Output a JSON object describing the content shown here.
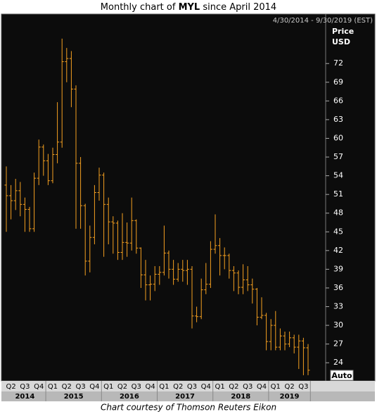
{
  "chart_data": {
    "type": "ohlc",
    "title": {
      "prefix": "Monthly chart of ",
      "ticker": "MYL",
      "suffix": " since April 2014"
    },
    "date_range": "4/30/2014 - 9/30/2019 (EST)",
    "axis_label": [
      "Price",
      "USD"
    ],
    "auto_label": "Auto",
    "caption": "Chart courtesy of Thomson Reuters Eikon",
    "color": "#f5a020",
    "quarters": [
      "Q2",
      "Q3",
      "Q4",
      "Q1",
      "Q2",
      "Q3",
      "Q4",
      "Q1",
      "Q2",
      "Q3",
      "Q4",
      "Q1",
      "Q2",
      "Q3",
      "Q4",
      "Q1",
      "Q2",
      "Q3",
      "Q4",
      "Q1",
      "Q2",
      "Q3"
    ],
    "years": [
      "2014",
      "2015",
      "2016",
      "2017",
      "2018",
      "2019"
    ],
    "ylim": [
      21.2,
      77.9
    ],
    "yticks": [
      24,
      27,
      30,
      33,
      36,
      39,
      42,
      45,
      48,
      51,
      54,
      57,
      60,
      63,
      66,
      69,
      72
    ],
    "ohlc": {
      "open": [
        52.5,
        50.8,
        50.0,
        51.6,
        49.4,
        48.6,
        45.5,
        53.6,
        58.6,
        56.4,
        53.2,
        57.4,
        59.4,
        72.3,
        72.8,
        67.9,
        56.0,
        49.2,
        40.3,
        44.1,
        51.3,
        54.1,
        49.4,
        46.6,
        46.4,
        41.7,
        43.3,
        43.2,
        46.8,
        42.4,
        38.1,
        36.5,
        36.6,
        38.2,
        38.5,
        41.6,
        39.0,
        37.4,
        39.0,
        38.8,
        39.0,
        31.5,
        31.4,
        35.7,
        36.6,
        42.2,
        42.8,
        41.2,
        41.2,
        38.8,
        38.4,
        36.1,
        37.3,
        36.5,
        35.8,
        31.3,
        31.6,
        27.4,
        30.0,
        26.5,
        28.3,
        27.0,
        28.0,
        26.5,
        27.5,
        26.4
      ],
      "high": [
        55.5,
        52.5,
        53.5,
        53.0,
        50.5,
        49.0,
        54.5,
        59.8,
        59.0,
        57.5,
        58.5,
        65.8,
        76.0,
        74.5,
        74.0,
        68.5,
        57.0,
        49.5,
        46.0,
        52.5,
        55.3,
        54.5,
        50.5,
        47.5,
        46.8,
        48.0,
        46.5,
        50.5,
        47.0,
        42.5,
        40.5,
        38.0,
        39.5,
        39.5,
        46.0,
        42.0,
        40.5,
        40.0,
        40.5,
        40.5,
        39.5,
        33.0,
        37.5,
        40.0,
        43.5,
        47.8,
        44.0,
        42.5,
        41.5,
        39.5,
        38.8,
        39.8,
        39.5,
        37.5,
        36.0,
        34.5,
        32.0,
        31.0,
        32.3,
        29.5,
        29.0,
        29.0,
        28.5,
        28.5,
        28.0,
        27.0
      ],
      "low": [
        45.0,
        47.0,
        48.5,
        47.5,
        45.0,
        45.0,
        45.0,
        52.5,
        54.0,
        52.5,
        52.8,
        56.0,
        58.5,
        69.0,
        65.0,
        45.5,
        45.5,
        38.0,
        38.5,
        43.0,
        50.0,
        41.0,
        43.0,
        41.5,
        40.5,
        40.5,
        41.0,
        42.0,
        41.5,
        36.0,
        34.0,
        34.0,
        35.5,
        36.5,
        38.0,
        37.5,
        36.5,
        37.0,
        37.0,
        36.5,
        29.5,
        30.5,
        31.0,
        35.0,
        36.0,
        41.5,
        38.0,
        39.0,
        37.5,
        35.5,
        35.0,
        35.0,
        35.5,
        33.5,
        30.0,
        31.0,
        26.0,
        26.0,
        26.0,
        26.0,
        26.0,
        26.5,
        25.5,
        23.0,
        22.0,
        22.0
      ],
      "close": [
        50.8,
        50.0,
        51.6,
        49.4,
        48.6,
        45.5,
        53.6,
        58.6,
        56.4,
        53.2,
        57.4,
        59.4,
        72.3,
        72.8,
        67.9,
        56.0,
        49.2,
        40.3,
        44.1,
        51.3,
        54.1,
        49.4,
        46.6,
        46.4,
        41.7,
        43.3,
        43.2,
        46.8,
        42.4,
        38.1,
        36.5,
        36.6,
        38.2,
        38.5,
        41.6,
        39.0,
        37.4,
        39.0,
        38.8,
        39.0,
        31.5,
        31.4,
        35.7,
        36.6,
        42.2,
        42.8,
        41.2,
        41.2,
        38.8,
        38.4,
        36.1,
        37.3,
        36.5,
        35.8,
        31.3,
        31.6,
        27.4,
        30.0,
        26.5,
        28.3,
        27.0,
        28.0,
        26.5,
        27.5,
        26.4,
        22.8
      ]
    }
  }
}
